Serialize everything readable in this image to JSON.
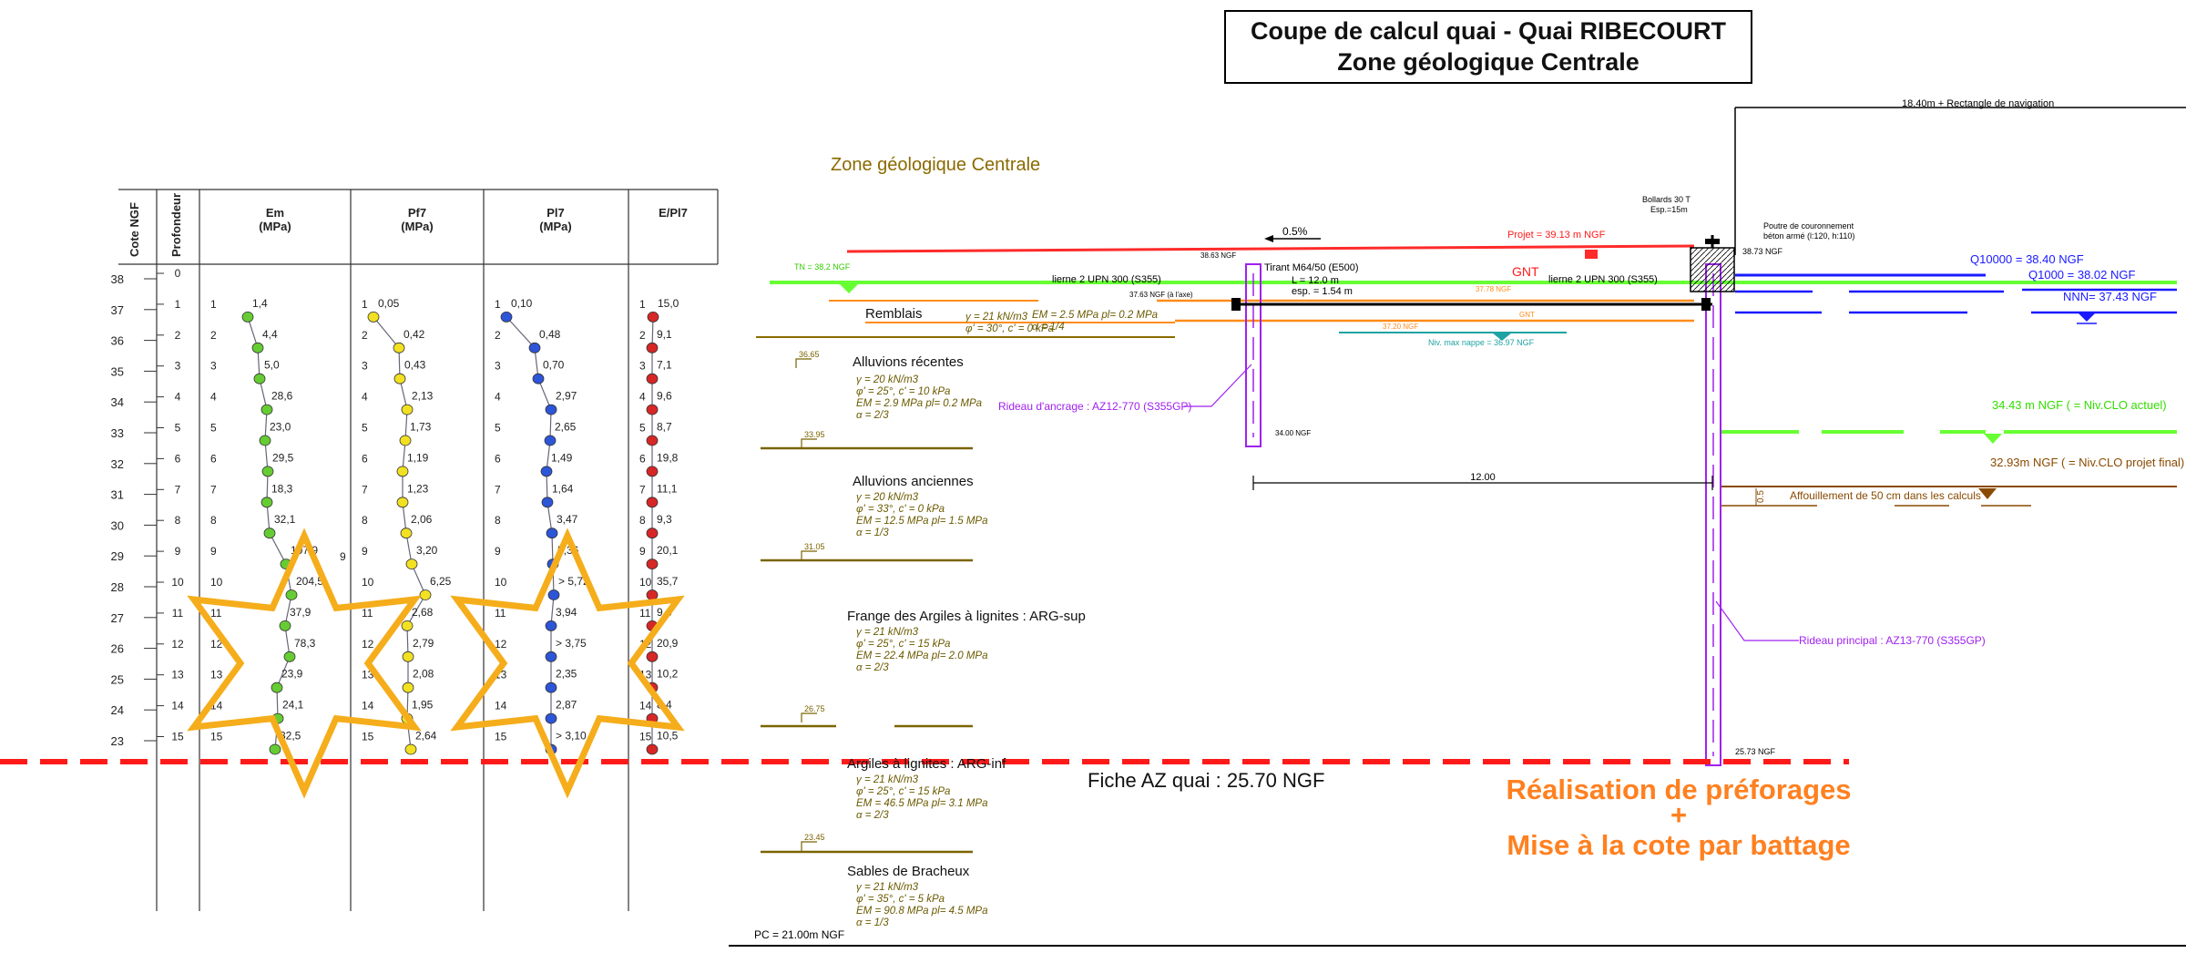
{
  "title": {
    "line1": "Coupe de calcul quai - Quai RIBECOURT",
    "line2": "Zone géologique Centrale"
  },
  "zone_label": "Zone géologique Centrale",
  "log": {
    "headers": {
      "cote": "Cote NGF",
      "profondeur": "Profondeur",
      "em": [
        "Em",
        "(MPa)"
      ],
      "pf": [
        "Pf7",
        "(MPa)"
      ],
      "pl": [
        "Pl7",
        "(MPa)"
      ],
      "epl": [
        "E/Pl7"
      ]
    },
    "cote_ticks": [
      "38",
      "37",
      "36",
      "35",
      "34",
      "33",
      "32",
      "31",
      "30",
      "29",
      "28",
      "27",
      "26",
      "25",
      "24",
      "23"
    ],
    "prof_ticks": [
      "0",
      "1",
      "2",
      "3",
      "4",
      "5",
      "6",
      "7",
      "8",
      "9",
      "10",
      "11",
      "12",
      "13",
      "14",
      "15"
    ],
    "depths": [
      "1",
      "2",
      "3",
      "4",
      "5",
      "6",
      "7",
      "8",
      "9",
      "10",
      "11",
      "12",
      "13",
      "14",
      "15"
    ],
    "em": [
      "1,4",
      "4,4",
      "5,0",
      "28,6",
      "23,0",
      "29,5",
      "18,3",
      "32,1",
      "107,9",
      "204,5",
      "37,9",
      "78,3",
      "23,9",
      "24,1",
      "32,5"
    ],
    "pf": [
      "0,05",
      "0,42",
      "0,43",
      "2,13",
      "1,73",
      "1,19",
      "1,23",
      "2,06",
      "3,20",
      "6,25",
      "2,68",
      "2,79",
      "2,08",
      "1,95",
      "2,64"
    ],
    "pl": [
      "0,10",
      "0,48",
      "0,70",
      "2,97",
      "2,65",
      "1,49",
      "1,64",
      "3,47",
      "5,36",
      "> 5,72",
      "3,94",
      "> 3,75",
      "2,35",
      "2,87",
      "> 3,10"
    ],
    "epl": [
      "15,0",
      "9,1",
      "7,1",
      "9,6",
      "8,7",
      "19,8",
      "11,1",
      "9,3",
      "20,1",
      "35,7",
      "9,6",
      "20,9",
      "10,2",
      "8,4",
      "10,5"
    ],
    "extra_nine": "9",
    "colors": {
      "em": "#66cc33",
      "pf": "#f2e022",
      "pl": "#2d55d8",
      "epl": "#d62626"
    }
  },
  "section": {
    "nav_rect": "18.40m + Rectangle de navigation",
    "bollards": [
      "Bollards 30 T",
      "Esp.=15m"
    ],
    "poutre": [
      "Poutre de couronnement",
      "béton armé (l:120, h:110)"
    ],
    "slope": "0.5%",
    "projet": "Projet = 39.13 m NGF",
    "gnt": "GNT",
    "gnt_small": "GNT",
    "tn": "TN = 38.2 NGF",
    "pt_3863": "38.63 NGF",
    "pt_3873": "38.73 NGF",
    "pt_3763": "37.63 NGF (à l'axe)",
    "pt_3778": "37.78 NGF",
    "pt_3720": "37.20 NGF",
    "pt_3400": "34.00 NGF",
    "pt_2573": "25.73 NGF",
    "nappe": "Niv. max nappe = 36.97 NGF",
    "tirant": [
      "Tirant M64/50 (E500)",
      "L = 12.0 m",
      "esp. = 1.54 m"
    ],
    "lierne_left": "lierne 2 UPN 300 (S355)",
    "lierne_right": "lierne 2 UPN 300 (S355)",
    "q10000": "Q10000 = 38.40 NGF",
    "q1000": "Q1000 = 38.02 NGF",
    "nnn": "NNN= 37.43 NGF",
    "clo_actuel": "34.43 m NGF ( = Niv.CLO actuel)",
    "clo_projet": "32.93m NGF ( = Niv.CLO projet final)",
    "affouillement": "Affouillement de 50 cm dans les calculs",
    "aff_dim": "0.5",
    "dist_12": "12.00",
    "rideau_ancrage": "Rideau d'ancrage : AZ12-770 (S355GP)",
    "rideau_principal": "Rideau principal : AZ13-770 (S355GP)",
    "fiche": "Fiche AZ quai : 25.70 NGF",
    "realisation": [
      "Réalisation de préforages",
      "+",
      "Mise à la cote par battage"
    ],
    "pc": "PC = 21.00m NGF",
    "layers": [
      {
        "name": "Remblais",
        "params": [
          "γ = 21 kN/m3",
          "φ' = 30°, c' = 0 kPa"
        ],
        "params_b": [
          "EM = 2.5 MPa  pl= 0.2 MPa",
          "α = 1/4"
        ],
        "base": "36.65"
      },
      {
        "name": "Alluvions récentes",
        "params": [
          "γ = 20 kN/m3",
          "φ' = 25°, c' = 10 kPa",
          "EM = 2.9 MPa  pl= 0.2 MPa",
          "α = 2/3"
        ],
        "base": "33.95"
      },
      {
        "name": "Alluvions anciennes",
        "params": [
          "γ = 20 kN/m3",
          "φ' = 33°, c' = 0 kPa",
          "EM = 12.5 MPa  pl= 1.5 MPa",
          "α = 1/3"
        ],
        "base": "31.05"
      },
      {
        "name": "Frange des Argiles à lignites : ARG-sup",
        "params": [
          "γ = 21 kN/m3",
          "φ' = 25°, c' = 15 kPa",
          "EM = 22.4 MPa  pl= 2.0 MPa",
          "α = 2/3"
        ],
        "base": "26.75"
      },
      {
        "name": "Argiles à lignites : ARG-inf",
        "params": [
          "γ = 21 kN/m3",
          "φ' = 25°, c' = 15 kPa",
          "EM = 46.5 MPa  pl= 3.1 MPa",
          "α = 2/3"
        ],
        "base": "23.45"
      },
      {
        "name": "Sables de Bracheux",
        "params": [
          "γ = 21 kN/m3",
          "φ' = 35°, c' = 5 kPa",
          "EM = 90.8 MPa  pl= 4.5 MPa",
          "α = 1/3"
        ],
        "base": ""
      }
    ]
  }
}
